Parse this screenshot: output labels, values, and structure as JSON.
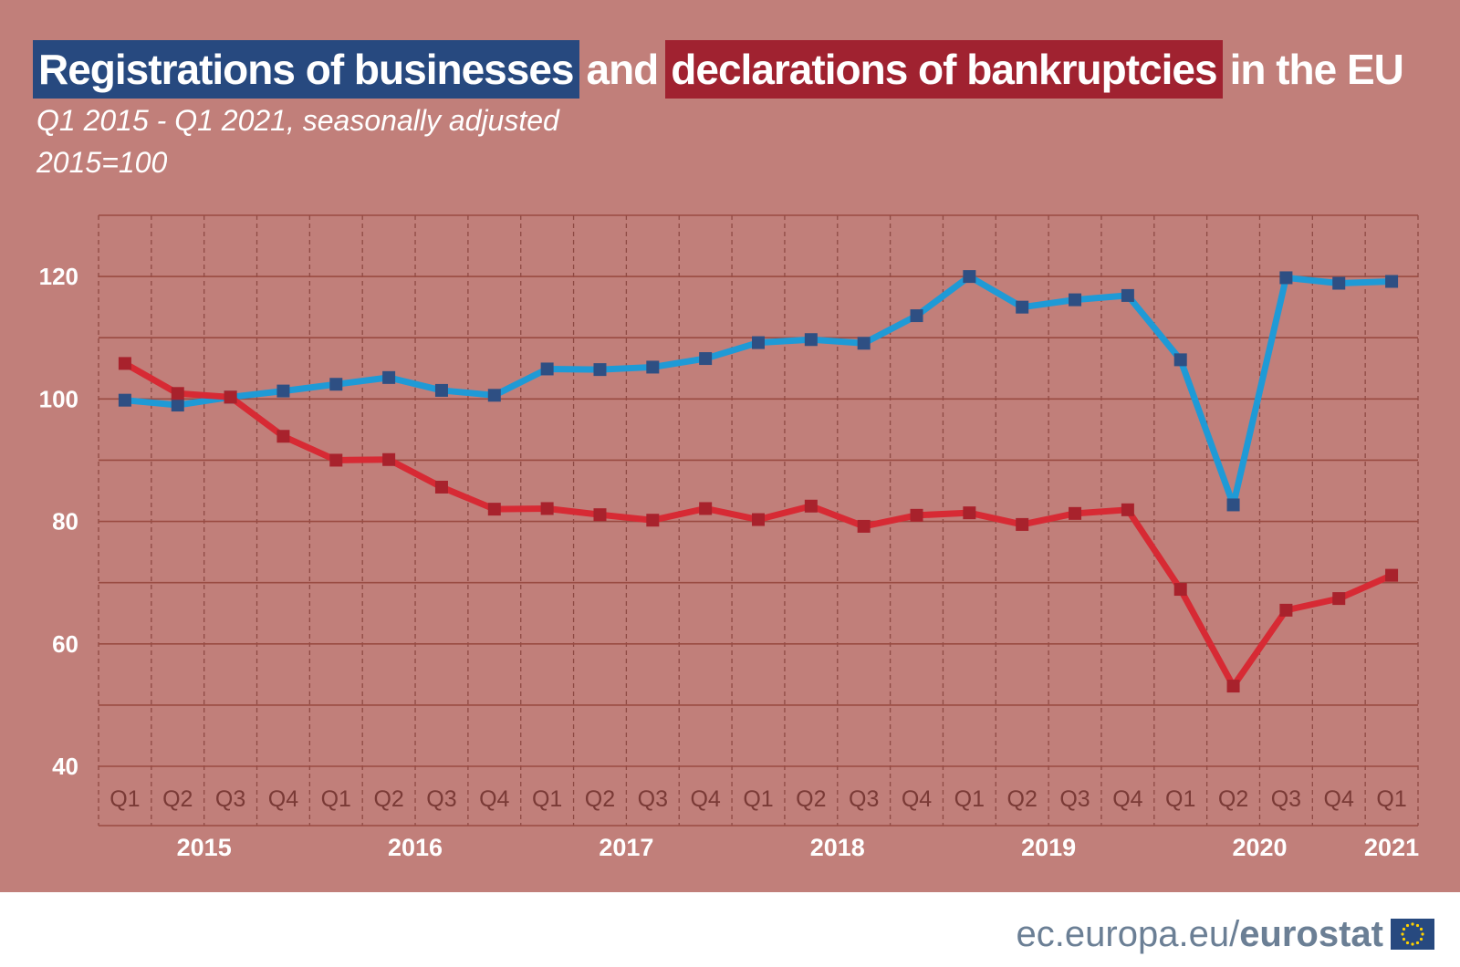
{
  "header": {
    "title_part1": "Registrations of businesses",
    "title_part2": "and",
    "title_part3": "declarations of bankruptcies",
    "title_part4": "in the EU",
    "subtitle_line1": "Q1 2015  - Q1 2021, seasonally adjusted",
    "subtitle_line2": "2015=100"
  },
  "footer": {
    "site": "ec.europa.eu/",
    "brand": "eurostat"
  },
  "colors": {
    "background": "#c17f7a",
    "registrations": "#1f9ad6",
    "bankruptcies": "#d72a34",
    "title_blue": "#27497f",
    "title_red": "#a02230"
  },
  "chart_data": {
    "type": "line",
    "x": [
      "Q1",
      "Q2",
      "Q3",
      "Q4",
      "Q1",
      "Q2",
      "Q3",
      "Q4",
      "Q1",
      "Q2",
      "Q3",
      "Q4",
      "Q1",
      "Q2",
      "Q3",
      "Q4",
      "Q1",
      "Q2",
      "Q3",
      "Q4",
      "Q1",
      "Q2",
      "Q3",
      "Q4",
      "Q1"
    ],
    "years": [
      "2015",
      "2016",
      "2017",
      "2018",
      "2019",
      "2020",
      "2021"
    ],
    "year_quarter_counts": [
      4,
      4,
      4,
      4,
      4,
      4,
      1
    ],
    "yticks": [
      40,
      60,
      80,
      100,
      120
    ],
    "ylim": [
      30,
      130
    ],
    "grid": true,
    "series": [
      {
        "color": "#1f9ad6",
        "values": [
          99.8,
          99.0,
          100.3,
          101.3,
          102.4,
          103.5,
          101.4,
          100.6,
          104.9,
          104.8,
          105.2,
          106.6,
          109.2,
          109.7,
          109.1,
          113.6,
          120.0,
          115.0,
          116.2,
          116.9,
          106.4,
          82.7,
          119.8,
          118.9,
          119.2
        ]
      },
      {
        "color": "#d72a34",
        "values": [
          105.8,
          100.9,
          100.3,
          93.9,
          90.0,
          90.1,
          85.6,
          82.0,
          82.1,
          81.1,
          80.2,
          82.1,
          80.3,
          82.5,
          79.2,
          81.0,
          81.4,
          79.5,
          81.3,
          81.9,
          68.9,
          53.1,
          65.5,
          67.4,
          71.2
        ]
      }
    ]
  }
}
